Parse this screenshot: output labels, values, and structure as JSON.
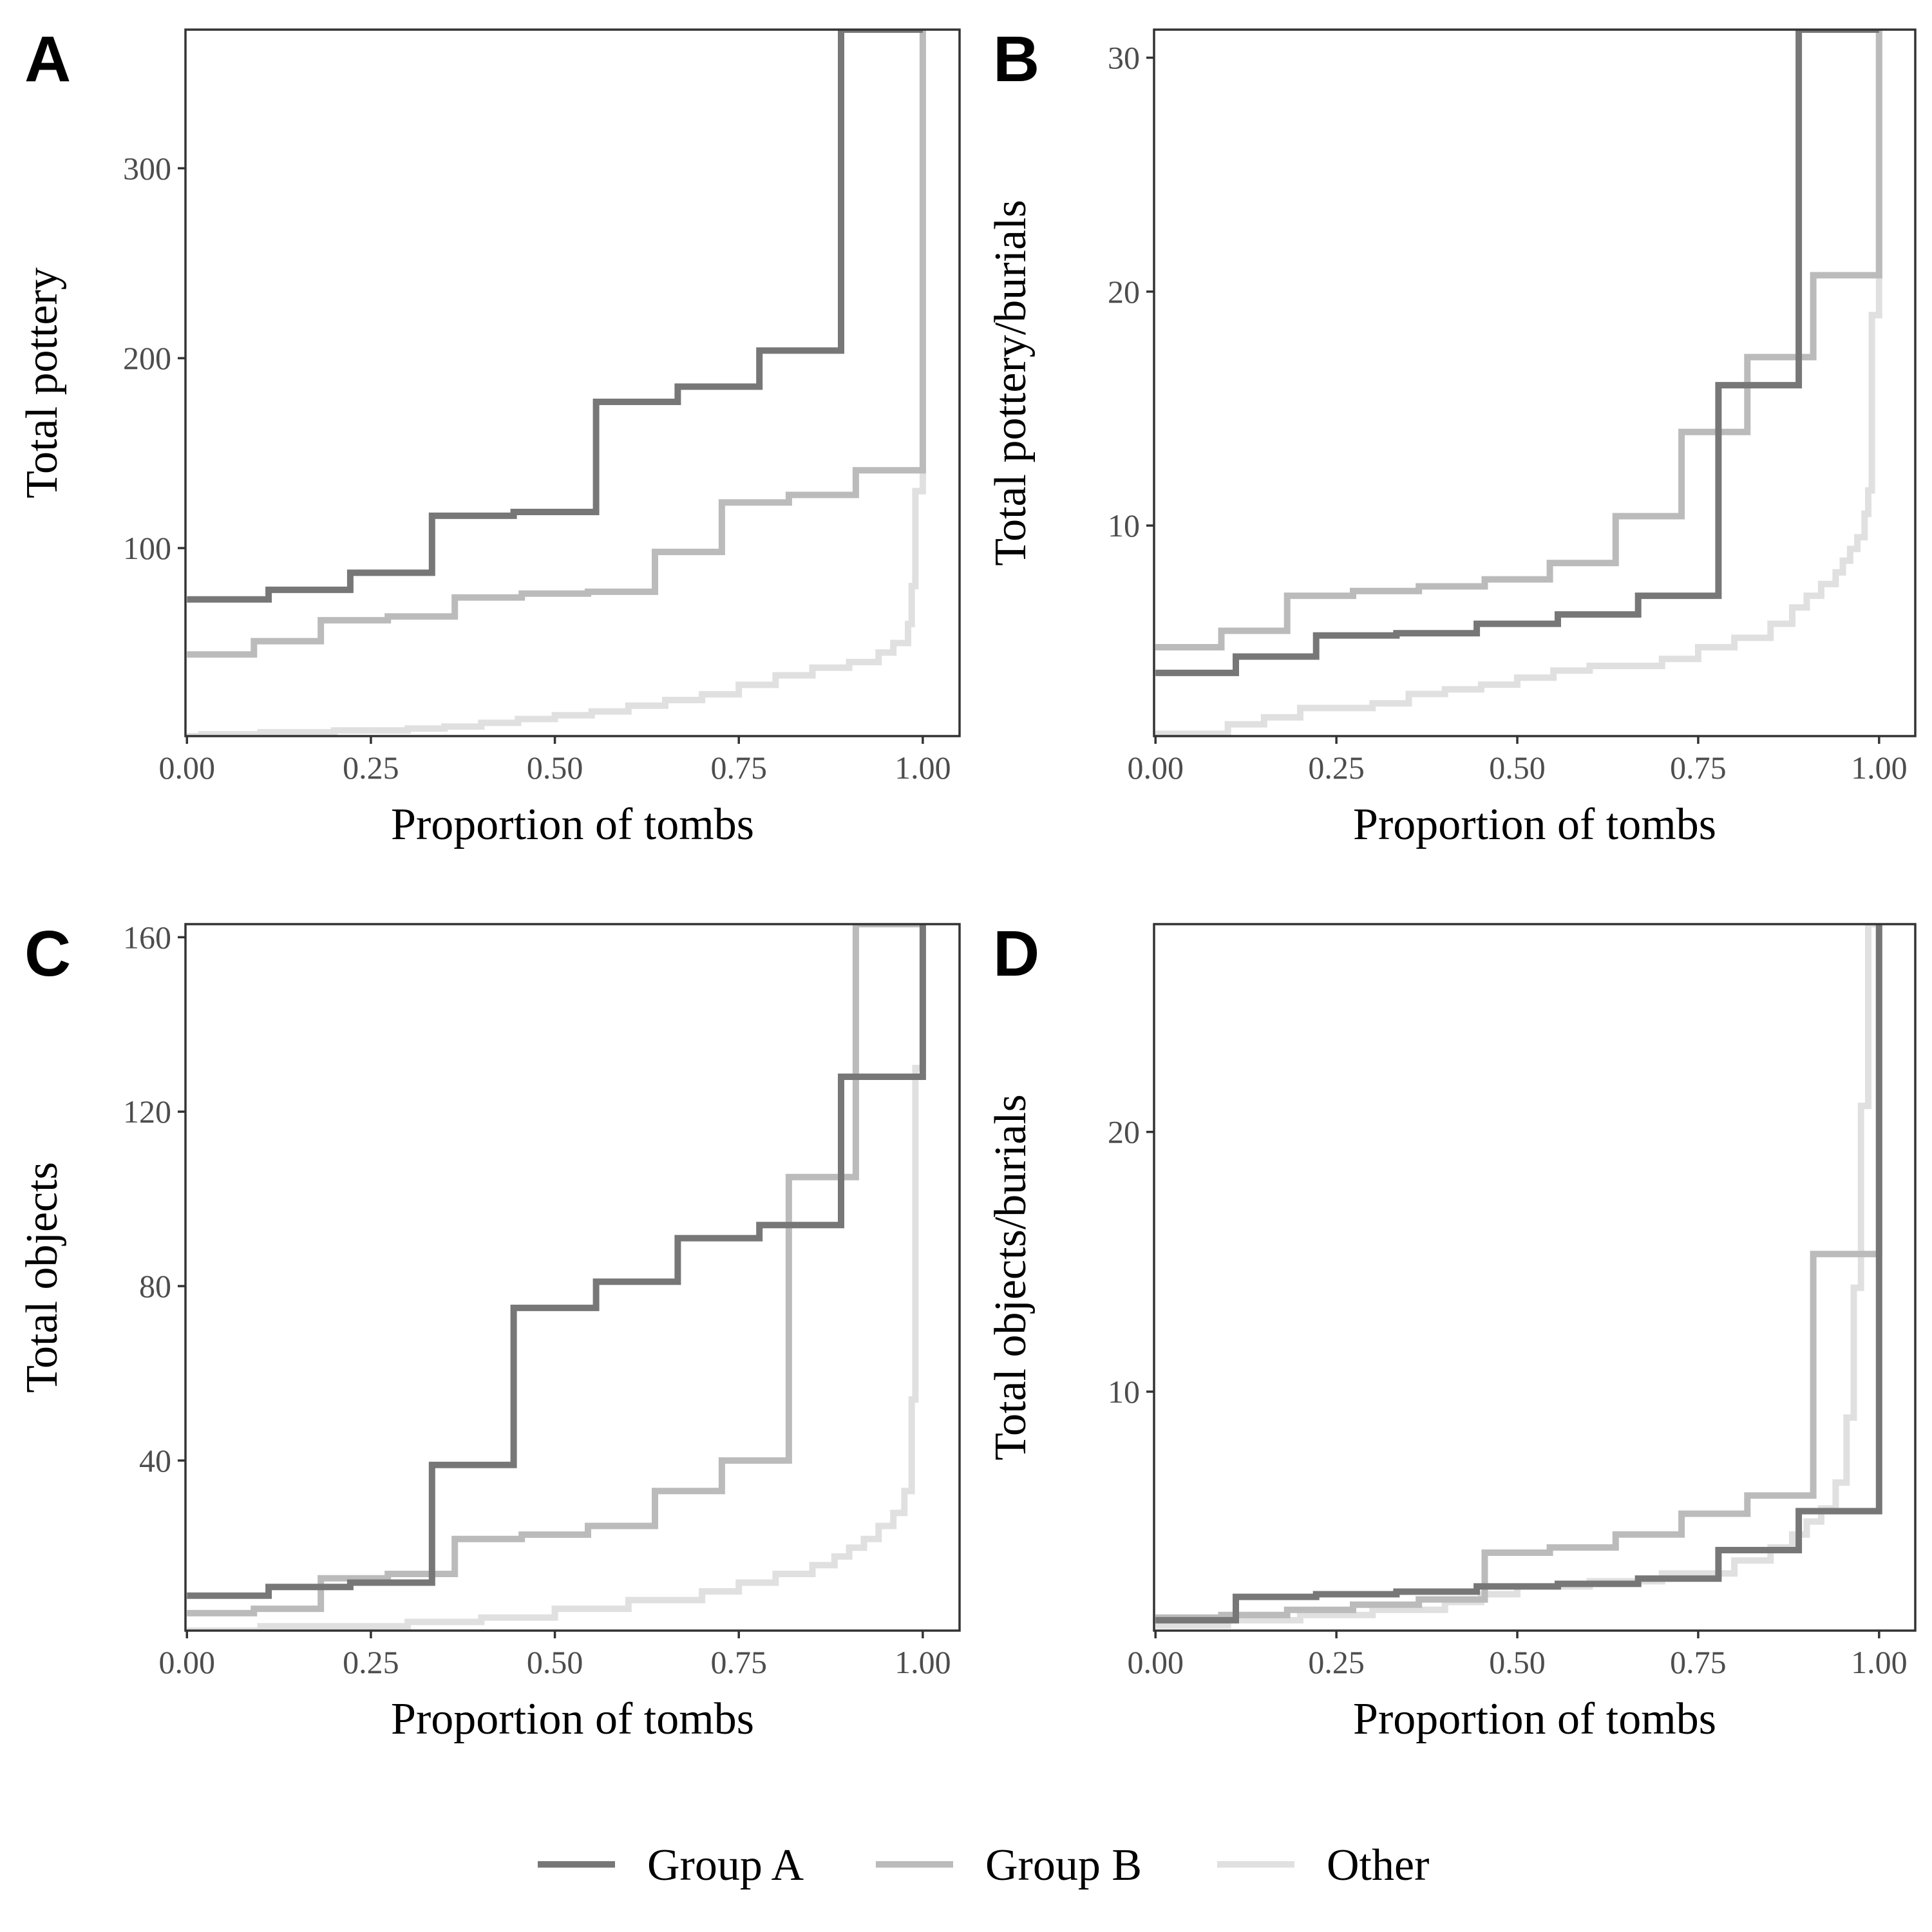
{
  "legend": {
    "position": "bottom",
    "items": [
      {
        "label": "Group A",
        "color": "#777777"
      },
      {
        "label": "Group B",
        "color": "#bbbbbb"
      },
      {
        "label": "Other",
        "color": "#e0e0e0"
      }
    ]
  },
  "chart_data": [
    {
      "panel": "A",
      "type": "line",
      "step": true,
      "xlabel": "Proportion of tombs",
      "ylabel": "Total pottery",
      "xlim": [
        -0.002,
        1.05
      ],
      "ylim": [
        1,
        373
      ],
      "xticks": [
        0,
        0.25,
        0.5,
        0.75,
        1
      ],
      "xtick_labels": [
        "0.00",
        "0.25",
        "0.50",
        "0.75",
        "1.00"
      ],
      "yticks": [
        100,
        200,
        300
      ],
      "ytick_labels": [
        "100",
        "200",
        "300"
      ],
      "series": [
        {
          "name": "Other",
          "x": [
            0,
            0.02,
            0.1,
            0.2,
            0.3,
            0.35,
            0.4,
            0.45,
            0.5,
            0.55,
            0.6,
            0.65,
            0.7,
            0.75,
            0.8,
            0.85,
            0.9,
            0.94,
            0.96,
            0.98,
            0.985,
            0.99,
            1.0
          ],
          "y": [
            1,
            2,
            3,
            4,
            5,
            6,
            8,
            10,
            12,
            14,
            17,
            20,
            23,
            28,
            33,
            37,
            40,
            45,
            50,
            60,
            80,
            130,
            141
          ]
        },
        {
          "name": "Group B",
          "x": [
            0,
            0.091,
            0.182,
            0.273,
            0.364,
            0.455,
            0.545,
            0.636,
            0.727,
            0.818,
            0.909,
            1.0
          ],
          "y": [
            44,
            51,
            62,
            64,
            74,
            76,
            77,
            98,
            124,
            128,
            141,
            373
          ]
        },
        {
          "name": "Group A",
          "x": [
            0,
            0.111,
            0.222,
            0.333,
            0.444,
            0.556,
            0.667,
            0.778,
            0.889,
            1.0
          ],
          "y": [
            73,
            78,
            87,
            117,
            119,
            177,
            185,
            204,
            373,
            373
          ]
        }
      ]
    },
    {
      "panel": "B",
      "type": "line",
      "step": true,
      "xlabel": "Proportion of tombs",
      "ylabel": "Total pottery/burials",
      "xlim": [
        -0.002,
        1.05
      ],
      "ylim": [
        1,
        31.2
      ],
      "xticks": [
        0,
        0.25,
        0.5,
        0.75,
        1
      ],
      "xtick_labels": [
        "0.00",
        "0.25",
        "0.50",
        "0.75",
        "1.00"
      ],
      "yticks": [
        10,
        20,
        30
      ],
      "ytick_labels": [
        "10",
        "20",
        "30"
      ],
      "series": [
        {
          "name": "Other",
          "x": [
            0,
            0.1,
            0.15,
            0.2,
            0.3,
            0.35,
            0.4,
            0.45,
            0.5,
            0.55,
            0.6,
            0.7,
            0.75,
            0.8,
            0.85,
            0.88,
            0.9,
            0.92,
            0.94,
            0.95,
            0.96,
            0.97,
            0.98,
            0.985,
            0.99,
            1.0
          ],
          "y": [
            1.1,
            1.5,
            1.8,
            2.2,
            2.4,
            2.8,
            3.0,
            3.2,
            3.5,
            3.8,
            4.0,
            4.3,
            4.8,
            5.2,
            5.8,
            6.5,
            7.0,
            7.5,
            8.0,
            8.5,
            9.0,
            9.5,
            10.5,
            11.5,
            19,
            31.2
          ]
        },
        {
          "name": "Group B",
          "x": [
            0,
            0.091,
            0.182,
            0.273,
            0.364,
            0.455,
            0.545,
            0.636,
            0.727,
            0.818,
            0.909,
            1.0
          ],
          "y": [
            4.8,
            5.5,
            7.0,
            7.2,
            7.4,
            7.7,
            8.4,
            10.4,
            14.0,
            17.2,
            20.7,
            31.2
          ]
        },
        {
          "name": "Group A",
          "x": [
            0,
            0.111,
            0.222,
            0.333,
            0.444,
            0.556,
            0.667,
            0.778,
            0.889,
            1.0
          ],
          "y": [
            3.7,
            4.4,
            5.3,
            5.4,
            5.8,
            6.2,
            7.0,
            16.0,
            31.2,
            31.2
          ]
        }
      ]
    },
    {
      "panel": "C",
      "type": "line",
      "step": true,
      "xlabel": "Proportion of tombs",
      "ylabel": "Total objects",
      "xlim": [
        -0.002,
        1.05
      ],
      "ylim": [
        1,
        163
      ],
      "xticks": [
        0,
        0.25,
        0.5,
        0.75,
        1
      ],
      "xtick_labels": [
        "0.00",
        "0.25",
        "0.50",
        "0.75",
        "1.00"
      ],
      "yticks": [
        40,
        80,
        120,
        160
      ],
      "ytick_labels": [
        "40",
        "80",
        "120",
        "160"
      ],
      "series": [
        {
          "name": "Other",
          "x": [
            0,
            0.1,
            0.3,
            0.4,
            0.5,
            0.6,
            0.7,
            0.75,
            0.8,
            0.85,
            0.88,
            0.9,
            0.92,
            0.94,
            0.96,
            0.975,
            0.985,
            0.99,
            1.0
          ],
          "y": [
            1,
            2,
            3,
            4,
            6,
            8,
            10,
            12,
            14,
            16,
            18,
            20,
            22,
            25,
            28,
            33,
            54,
            130,
            163
          ]
        },
        {
          "name": "Group B",
          "x": [
            0,
            0.091,
            0.182,
            0.273,
            0.364,
            0.455,
            0.545,
            0.636,
            0.727,
            0.818,
            0.909,
            1.0
          ],
          "y": [
            5,
            6,
            13,
            14,
            22,
            23,
            25,
            33,
            40,
            105,
            163,
            163
          ]
        },
        {
          "name": "Group A",
          "x": [
            0,
            0.111,
            0.222,
            0.333,
            0.444,
            0.556,
            0.667,
            0.778,
            0.889,
            1.0
          ],
          "y": [
            9,
            11,
            12,
            39,
            75,
            81,
            91,
            94,
            128,
            163
          ]
        }
      ]
    },
    {
      "panel": "D",
      "type": "line",
      "step": true,
      "xlabel": "Proportion of tombs",
      "ylabel": "Total objects/burials",
      "xlim": [
        -0.002,
        1.05
      ],
      "ylim": [
        0.8,
        28
      ],
      "xticks": [
        0,
        0.25,
        0.5,
        0.75,
        1
      ],
      "xtick_labels": [
        "0.00",
        "0.25",
        "0.50",
        "0.75",
        "1.00"
      ],
      "yticks": [
        10,
        20
      ],
      "ytick_labels": [
        "10",
        "20"
      ],
      "series": [
        {
          "name": "Other",
          "x": [
            0,
            0.1,
            0.2,
            0.3,
            0.4,
            0.45,
            0.5,
            0.6,
            0.7,
            0.8,
            0.85,
            0.88,
            0.9,
            0.92,
            0.94,
            0.955,
            0.965,
            0.975,
            0.985,
            0.99,
            1.0
          ],
          "y": [
            1.0,
            1.2,
            1.4,
            1.6,
            1.9,
            2.2,
            2.5,
            2.7,
            3.0,
            3.5,
            4.0,
            4.5,
            5.0,
            5.5,
            6.5,
            9.0,
            14,
            21,
            28,
            28,
            28
          ]
        },
        {
          "name": "Group B",
          "x": [
            0,
            0.091,
            0.182,
            0.273,
            0.364,
            0.455,
            0.545,
            0.636,
            0.727,
            0.818,
            0.909,
            1.0
          ],
          "y": [
            1.3,
            1.4,
            1.6,
            1.8,
            2.0,
            3.8,
            4.0,
            4.5,
            5.3,
            6.0,
            15.3,
            28
          ]
        },
        {
          "name": "Group A",
          "x": [
            0,
            0.111,
            0.222,
            0.333,
            0.444,
            0.556,
            0.667,
            0.778,
            0.889,
            1.0
          ],
          "y": [
            1.2,
            2.1,
            2.2,
            2.3,
            2.5,
            2.6,
            2.8,
            3.9,
            5.4,
            28
          ]
        }
      ]
    }
  ]
}
